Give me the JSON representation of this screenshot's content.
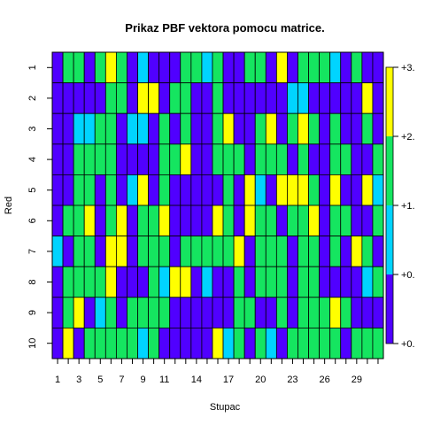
{
  "chart_data": {
    "type": "heatmap",
    "title": "Prikaz PBF vektora pomocu matrice.",
    "xlabel": "Stupac",
    "ylabel": "Red",
    "x_tick_labels": [
      "1",
      "3",
      "5",
      "7",
      "9",
      "11",
      "14",
      "17",
      "20",
      "23",
      "26",
      "29"
    ],
    "x_tick_positions": [
      1,
      3,
      5,
      7,
      9,
      11,
      14,
      17,
      20,
      23,
      26,
      29
    ],
    "n_cols": 31,
    "rows": [
      "1",
      "2",
      "3",
      "4",
      "5",
      "6",
      "7",
      "8",
      "9",
      "10"
    ],
    "value_range": [
      0,
      3
    ],
    "palette": [
      {
        "value": 0,
        "color": "#5000FF"
      },
      {
        "value": 1,
        "color": "#00D4FF"
      },
      {
        "value": 2,
        "color": "#15E560"
      },
      {
        "value": 3,
        "color": "#FFFF00"
      }
    ],
    "colorbar_labels": [
      "+3.",
      "+2.",
      "+1.",
      "+0.",
      "+0."
    ],
    "cells": [
      "0220232010002212002203022210200",
      "0000022033022002000000110000030",
      "0011220110202002300230232020020",
      "0022220000223002220222020022002",
      "0022020130200000203103332030031",
      "0223023022300003203220223022002",
      "1022033022202222230222022020320",
      "0222230002133010020222022000012",
      "0230120222200000022002022232000",
      "0302222212000003120210222220222"
    ]
  }
}
